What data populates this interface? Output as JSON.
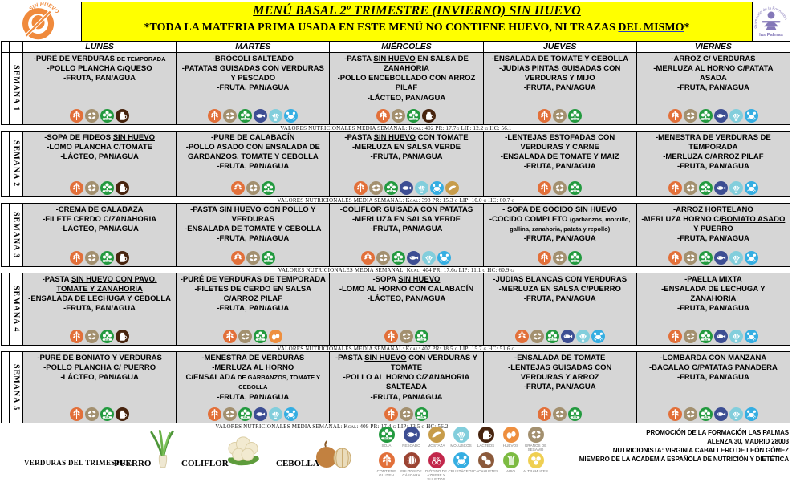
{
  "header": {
    "title": "MENÚ BASAL 2º TRIMESTRE (INVIERNO)  SIN HUEVO",
    "subtitle": "*TODA LA MATERIA PRIMA USADA EN ESTE MENÚ NO CONTIENE HUEVO, NI TRAZAS _DEL MISMO_*",
    "banner_color": "#FFFF00",
    "left_logo_text": "SIN HUEVO",
    "right_logo_arc": "Promoción de la Formación",
    "right_logo_name": "las Palmas"
  },
  "days": [
    "LUNES",
    "MARTES",
    "MIÉRCOLES",
    "JUEVES",
    "VIERNES"
  ],
  "weeks": [
    {
      "label": "SEMANA 1",
      "cells": [
        {
          "lines": [
            "-PURÉ DE VERDURAS ~DE TEMPORADA~",
            "-POLLO PLANCHA C/QUESO",
            "-FRUTA, PAN/AGUA"
          ],
          "allergens": [
            "gluten",
            "sesamo",
            "soja",
            "lacteos"
          ]
        },
        {
          "lines": [
            "-BRÓCOLI SALTEADO",
            "-PATATAS GUISADAS CON VERDURAS Y PESCADO",
            "-FRUTA, PAN/AGUA"
          ],
          "allergens": [
            "gluten",
            "sesamo",
            "soja",
            "pescado",
            "moluscos",
            "crustaceos"
          ]
        },
        {
          "lines": [
            "-PASTA _SIN HUEVO_ EN SALSA DE ZANAHORIA",
            "-POLLO ENCEBOLLADO CON ARROZ PILAF",
            "-LÁCTEO, PAN/AGUA"
          ],
          "allergens": [
            "gluten",
            "sesamo",
            "soja",
            "lacteos"
          ]
        },
        {
          "lines": [
            "-ENSALADA DE TOMATE Y CEBOLLA",
            "-JUDIAS PINTAS GUISADAS CON VERDURAS Y MIJO",
            "-FRUTA, PAN/AGUA"
          ],
          "allergens": [
            "gluten",
            "sesamo",
            "soja"
          ]
        },
        {
          "lines": [
            "-ARROZ C/ VERDURAS",
            "-MERLUZA AL HORNO C/PATATA ASADA",
            "-FRUTA, PAN/AGUA"
          ],
          "allergens": [
            "gluten",
            "sesamo",
            "soja",
            "pescado",
            "moluscos",
            "crustaceos"
          ]
        }
      ],
      "nutrition": "VALORES NUTRICIONALES MEDIA SEMANAL:  Kcal: 402 PR: 17.7g LIP: 12.2 g HC: 56.1"
    },
    {
      "label": "SEMANA 2",
      "cells": [
        {
          "lines": [
            "-SOPA DE FIDEOS _SIN HUEVO_",
            "-LOMO PLANCHA C/TOMATE",
            "-LÁCTEO, PAN/AGUA"
          ],
          "allergens": [
            "gluten",
            "sesamo",
            "soja",
            "lacteos"
          ]
        },
        {
          "lines": [
            "-PURE DE CALABACÍN",
            "-POLLO ASADO CON ENSALADA DE GARBANZOS, TOMATE Y CEBOLLA",
            "-FRUTA, PAN/AGUA"
          ],
          "allergens": [
            "gluten",
            "sesamo",
            "soja"
          ]
        },
        {
          "lines": [
            "-PASTA _SIN HUEVO_ CON TOMATE",
            "-MERLUZA EN SALSA VERDE",
            "-FRUTA, PAN/AGUA"
          ],
          "allergens": [
            "gluten",
            "sesamo",
            "soja",
            "pescado",
            "moluscos",
            "crustaceos",
            "mostaza"
          ]
        },
        {
          "lines": [
            "-LENTEJAS ESTOFADAS CON VERDURAS Y CARNE",
            "-ENSALADA DE TOMATE Y MAIZ",
            "-FRUTA, PAN/AGUA"
          ],
          "allergens": [
            "gluten",
            "sesamo",
            "soja"
          ]
        },
        {
          "lines": [
            "-MENESTRA DE VERDURAS DE TEMPORADA",
            "-MERLUZA C/ARROZ PILAF",
            "-FRUTA, PAN/AGUA"
          ],
          "allergens": [
            "gluten",
            "sesamo",
            "soja",
            "pescado",
            "moluscos",
            "crustaceos"
          ]
        }
      ],
      "nutrition": "VALORES NUTRICIONALES MEDIA SEMANAL:  Kcal: 398 PR: 15.3 g LIP: 10.0 g HC: 60.7 g"
    },
    {
      "label": "SEMANA 3",
      "cells": [
        {
          "lines": [
            "-CREMA DE CALABAZA",
            "-FILETE CERDO C/ZANAHORIA",
            "-LÁCTEO, PAN/AGUA"
          ],
          "allergens": [
            "gluten",
            "sesamo",
            "soja",
            "lacteos"
          ]
        },
        {
          "lines": [
            "-PASTA _SIN HUEVO_ CON POLLO Y VERDURAS",
            "-ENSALADA DE TOMATE Y CEBOLLA",
            "-FRUTA, PAN/AGUA"
          ],
          "allergens": [
            "gluten",
            "sesamo",
            "soja"
          ]
        },
        {
          "lines": [
            "-COLIFLOR GUISADA CON PATATAS",
            "-MERLUZA EN SALSA VERDE",
            "-FRUTA, PAN/AGUA"
          ],
          "allergens": [
            "gluten",
            "sesamo",
            "soja",
            "pescado",
            "moluscos",
            "crustaceos"
          ]
        },
        {
          "lines": [
            "- SOPA DE COCIDO _SIN HUEVO_",
            "-COCIDO COMPLETO ~(garbanzos, morcillo, gallina, zanahoria, patata y repollo)~",
            "-FRUTA, PAN/AGUA"
          ],
          "allergens": [
            "gluten",
            "sesamo",
            "soja"
          ]
        },
        {
          "lines": [
            "-ARROZ HORTELANO",
            "-MERLUZA HORNO C/_BONIATO ASADO_ Y PUERRO",
            "-FRUTA, PAN/AGUA"
          ],
          "allergens": [
            "gluten",
            "sesamo",
            "soja",
            "pescado",
            "moluscos",
            "crustaceos"
          ]
        }
      ],
      "nutrition": "VALORES NUTRICIONALES MEDIA SEMANAL:  Kcal: 404 PR: 17.6g LIP: 11.1 g HC: 60.9 g"
    },
    {
      "label": "SEMANA 4",
      "cells": [
        {
          "lines": [
            "-PASTA _SIN HUEVO CON PAVO, TOMATE Y ZANAHORIA_",
            "-ENSALADA DE LECHUGA Y CEBOLLA",
            "-FRUTA, PAN/AGUA"
          ],
          "allergens": [
            "gluten",
            "sesamo",
            "soja",
            "lacteos"
          ]
        },
        {
          "lines": [
            "-PURÉ DE VERDURAS DE TEMPORADA",
            "-FILETES DE CERDO EN SALSA C/ARROZ PILAF",
            "-FRUTA, PAN/AGUA"
          ],
          "allergens": [
            "gluten",
            "sesamo",
            "soja",
            "huevos"
          ]
        },
        {
          "lines": [
            "-SOPA _SIN HUEVO_",
            "-LOMO AL HORNO CON CALABACÍN",
            "-LÁCTEO, PAN/AGUA"
          ],
          "allergens": [
            "gluten",
            "sesamo",
            "soja"
          ]
        },
        {
          "lines": [
            "-JUDIAS BLANCAS CON VERDURAS",
            "-MERLUZA EN SALSA C/PUERRO",
            "-FRUTA, PAN/AGUA"
          ],
          "allergens": [
            "gluten",
            "sesamo",
            "soja",
            "pescado",
            "moluscos",
            "crustaceos"
          ]
        },
        {
          "lines": [
            "-PAELLA MIXTA",
            "-ENSALADA DE LECHUGA Y ZANAHORIA",
            "-FRUTA, PAN/AGUA"
          ],
          "allergens": [
            "gluten",
            "sesamo",
            "soja",
            "pescado",
            "moluscos",
            "crustaceos"
          ]
        }
      ],
      "nutrition": "VALORES NUTRICIONALES MEDIA SEMANAL:  Kcal: 407 PR: 18.5 g LIP: 15.7 g HC: 51.6 g"
    },
    {
      "label": "SEMANA 5",
      "cells": [
        {
          "lines": [
            "-PURÉ DE BONIATO Y VERDURAS",
            "-POLLO PLANCHA C/ PUERRO",
            "-LÁCTEO, PAN/AGUA"
          ],
          "allergens": [
            "gluten",
            "sesamo",
            "soja",
            "lacteos"
          ]
        },
        {
          "lines": [
            "-MENESTRA DE VERDURAS",
            "-MERLUZA AL HORNO",
            "C/ENSALADA ~DE GARBANZOS, TOMATE Y CEBOLLA~",
            "-FRUTA, PAN/AGUA"
          ],
          "allergens": [
            "gluten",
            "sesamo",
            "soja",
            "pescado",
            "moluscos",
            "crustaceos"
          ]
        },
        {
          "lines": [
            "-PASTA _SIN HUEVO_ CON VERDURAS Y TOMATE",
            "-POLLO AL HORNO C/ZANAHORIA SALTEADA",
            "-FRUTA, PAN/AGUA"
          ],
          "allergens": [
            "gluten",
            "sesamo",
            "soja"
          ]
        },
        {
          "lines": [
            "-ENSALADA DE TOMATE",
            "-LENTEJAS GUISADAS CON VERDURAS Y ARROZ",
            "-FRUTA, PAN/AGUA"
          ],
          "allergens": [
            "gluten",
            "sesamo",
            "soja"
          ]
        },
        {
          "lines": [
            "-LOMBARDA CON MANZANA",
            "-BACALAO C/PATATAS PANADERA",
            "-FRUTA, PAN/AGUA"
          ],
          "allergens": [
            "gluten",
            "sesamo",
            "soja",
            "pescado",
            "moluscos",
            "crustaceos"
          ]
        }
      ],
      "nutrition": "VALORES NUTRICIONALES MEDIA SEMANAL:  Kcal: 409 PR: 17.4 g LIP: 13.5 g HC: 56.2"
    }
  ],
  "allergen_colors": {
    "gluten": "#E2703A",
    "sesamo": "#A3906F",
    "soja": "#239A3F",
    "pescado": "#3D4E93",
    "moluscos": "#82CEDC",
    "lacteos": "#47240E",
    "crustaceos": "#35AEE2",
    "mostaza": "#C79C4A",
    "huevos": "#EE8F3F",
    "frutos_cascara": "#9C4433",
    "sulfitos": "#C2274B",
    "cacahuetes": "#8C5A3B",
    "apio": "#7DBB42",
    "altramuces": "#EFCF52"
  },
  "legend": [
    [
      {
        "type": "soja",
        "label": "SOJA"
      },
      {
        "type": "pescado",
        "label": "PESCADO"
      },
      {
        "type": "mostaza",
        "label": "MOSTAZA"
      },
      {
        "type": "moluscos",
        "label": "MOLUSCOS"
      },
      {
        "type": "lacteos",
        "label": "LÁCTEOS"
      },
      {
        "type": "huevos",
        "label": "HUEVOS"
      },
      {
        "type": "sesamo",
        "label": "GRANOS DE SÉSAMO"
      }
    ],
    [
      {
        "type": "gluten",
        "label": "CONTIENE GLUTEN"
      },
      {
        "type": "frutos_cascara",
        "label": "FRUTOS DE CÁSCARA"
      },
      {
        "type": "sulfitos",
        "label": "DIÓXIDO DE AZUFRE Y SULFITOS"
      },
      {
        "type": "crustaceos",
        "label": "CRUSTÁCEOS"
      },
      {
        "type": "cacahuetes",
        "label": "CACAHUETES"
      },
      {
        "type": "apio",
        "label": "APIO"
      },
      {
        "type": "altramuces",
        "label": "ALTRAMUCES"
      }
    ]
  ],
  "footer": {
    "veg_title": "VERDURAS DEL TRIMESTRE:",
    "vegetables": [
      {
        "name": "PUERRO",
        "icon": "leek"
      },
      {
        "name": "COLIFLOR",
        "icon": "cauliflower"
      },
      {
        "name": "CEBOLLA",
        "icon": "onion"
      }
    ],
    "promo_lines": [
      "PROMOCIÓN DE LA FORMACIÓN LAS PALMAS",
      "ALENZA 30, MADRID 28003",
      "NUTRICIONISTA: VIRGINIA CABALLERO DE LEÓN GÓMEZ",
      "MIEMBRO DE LA ACADEMIA ESPAÑOLA DE NUTRICIÓN Y DIETÉTICA"
    ]
  }
}
